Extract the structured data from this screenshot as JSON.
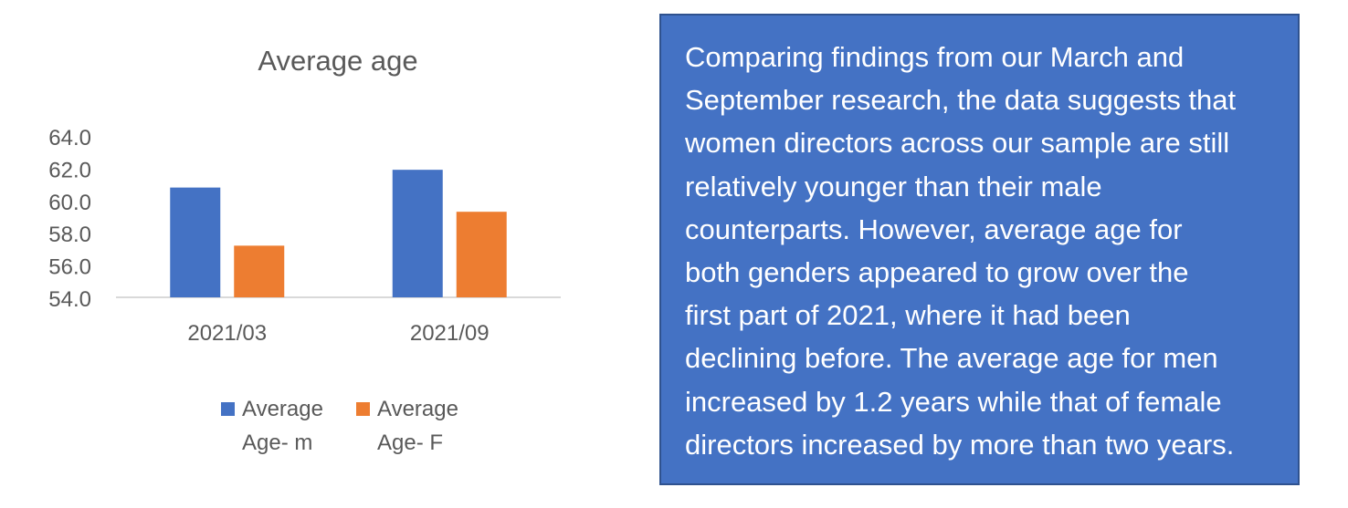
{
  "chart_data": {
    "type": "bar",
    "title": "Average age",
    "categories": [
      "2021/03",
      "2021/09"
    ],
    "series": [
      {
        "name": "Average Age- m",
        "values": [
          60.8,
          61.9
        ],
        "color": "#4472C4"
      },
      {
        "name": "Average Age- F",
        "values": [
          57.2,
          59.3
        ],
        "color": "#ED7D31"
      }
    ],
    "yticks": [
      "54.0",
      "56.0",
      "58.0",
      "60.0",
      "62.0",
      "64.0"
    ],
    "ylim": [
      54,
      64
    ],
    "grid": false,
    "legend_position": "bottom",
    "legend": [
      {
        "line1": "Average",
        "line2": "Age- m"
      },
      {
        "line1": "Average",
        "line2": "Age- F"
      }
    ]
  },
  "textbox": {
    "text": "Comparing findings from our March and\nSeptember research, the data suggests that\nwomen directors across our sample are still\nrelatively younger than their male\ncounterparts. However, average age for\nboth genders appeared to grow over the\nfirst part of 2021, where it had been\ndeclining before. The average age for men\nincreased by 1.2 years while that of female\ndirectors increased by more than two years.",
    "background": "#4472C4",
    "text_color": "#FFFFFF"
  }
}
